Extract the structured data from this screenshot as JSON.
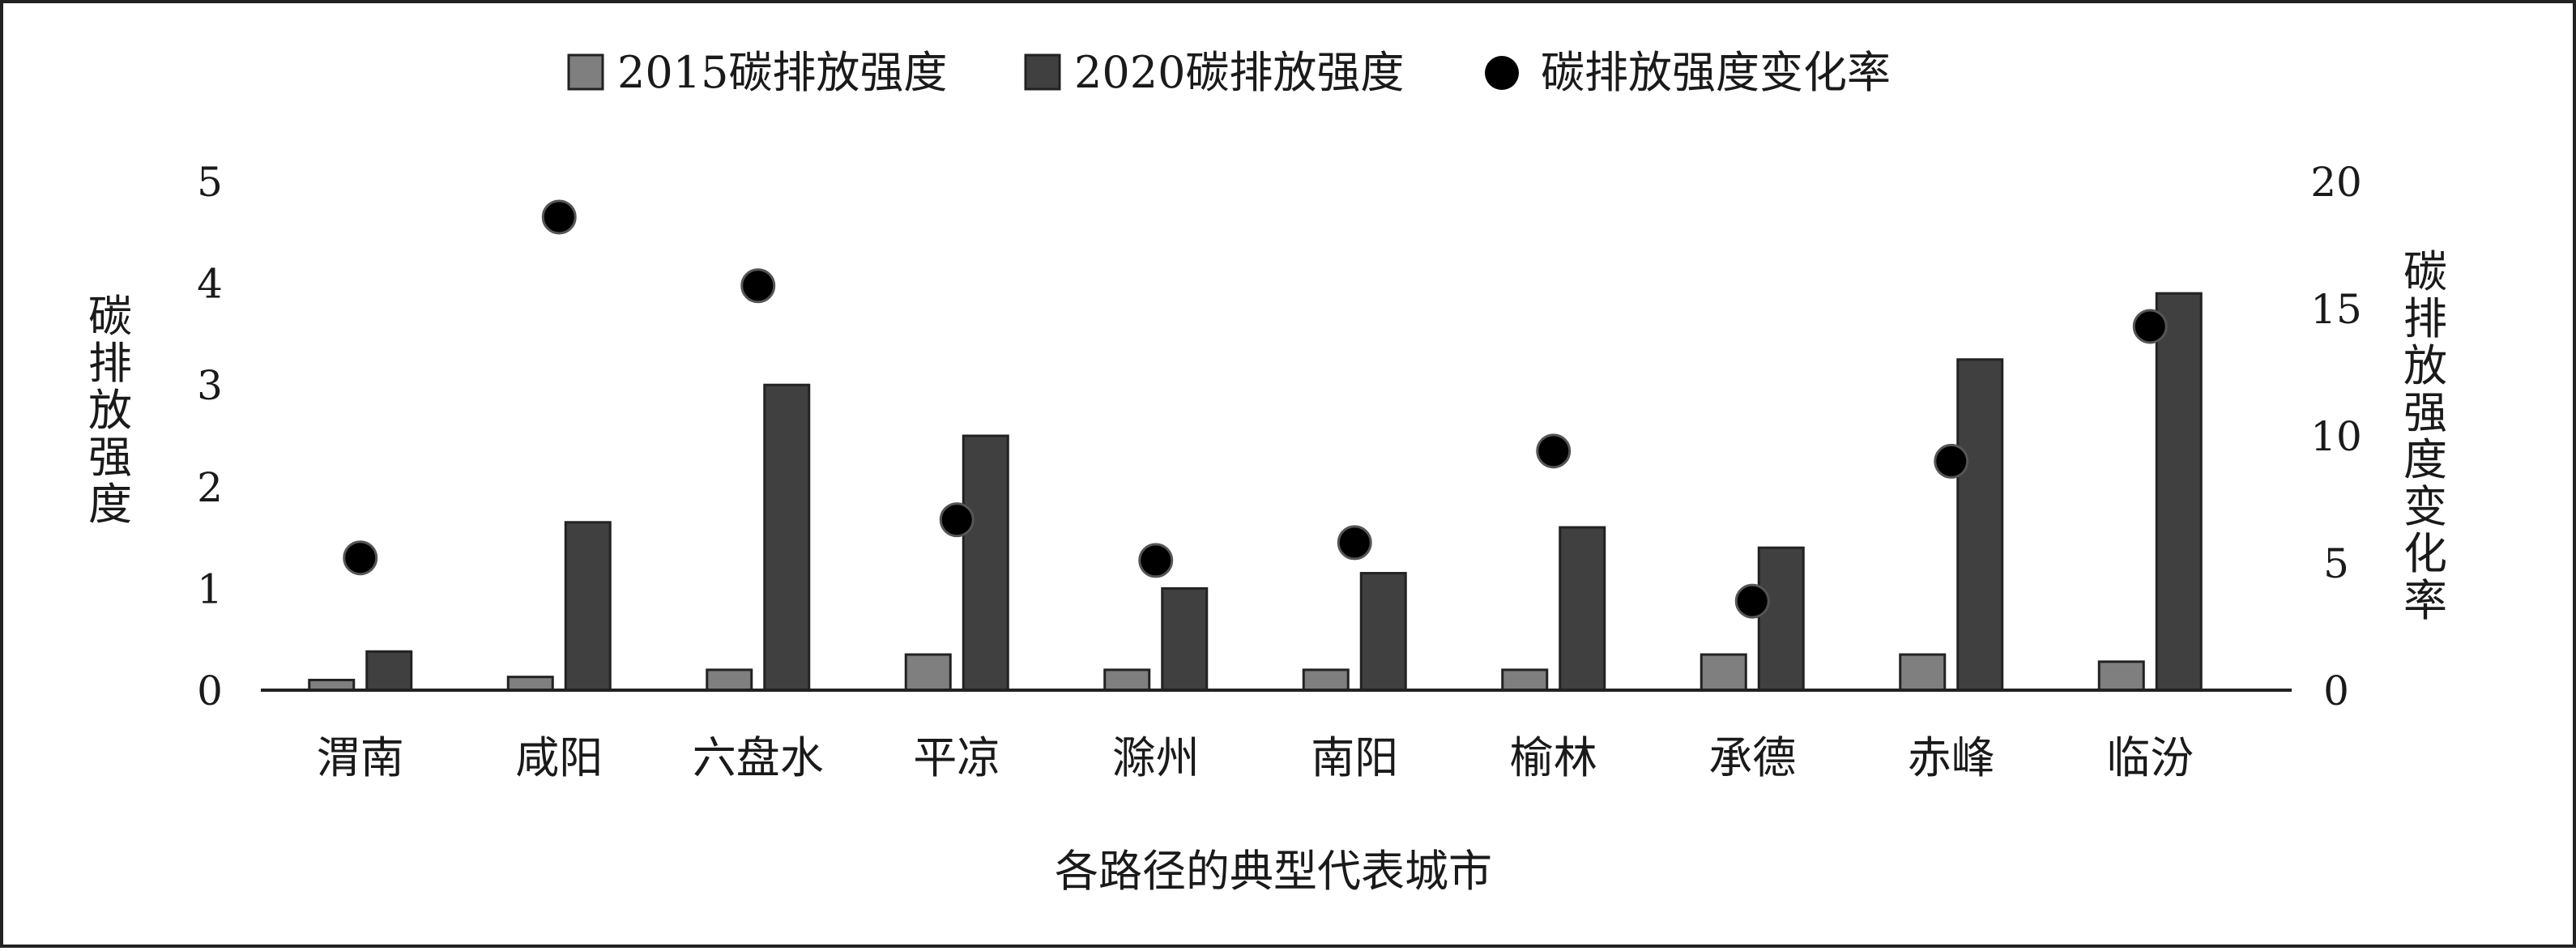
{
  "chart_data": {
    "type": "bar",
    "xlabel": "各路径的典型代表城市",
    "ylabel": "碳排放强度",
    "y2label": "碳排放强度变化率",
    "categories": [
      "渭南",
      "咸阳",
      "六盘水",
      "平凉",
      "滁州",
      "南阳",
      "榆林",
      "承德",
      "赤峰",
      "临汾"
    ],
    "ylim": [
      0,
      5
    ],
    "y2lim": [
      0,
      20
    ],
    "yticks": [
      "0",
      "1",
      "2",
      "3",
      "4",
      "5"
    ],
    "y2ticks": [
      "0",
      "5",
      "10",
      "15",
      "20"
    ],
    "grid": false,
    "legend_position": "top-center",
    "series": [
      {
        "name": "2015碳排放强度",
        "kind": "bar",
        "axis": "left",
        "color": "#7f7f7f",
        "values": [
          0.1,
          0.13,
          0.2,
          0.35,
          0.2,
          0.2,
          0.2,
          0.35,
          0.35,
          0.28
        ]
      },
      {
        "name": "2020碳排放强度",
        "kind": "bar",
        "axis": "left",
        "color": "#404040",
        "values": [
          0.38,
          1.65,
          3.0,
          2.5,
          1.0,
          1.15,
          1.6,
          1.4,
          3.25,
          3.9
        ]
      },
      {
        "name": "碳排放强度变化率",
        "kind": "scatter",
        "axis": "right",
        "color": "#000000",
        "values": [
          5.2,
          18.6,
          15.9,
          6.7,
          5.1,
          5.8,
          9.4,
          3.5,
          9.0,
          14.3
        ]
      }
    ]
  }
}
